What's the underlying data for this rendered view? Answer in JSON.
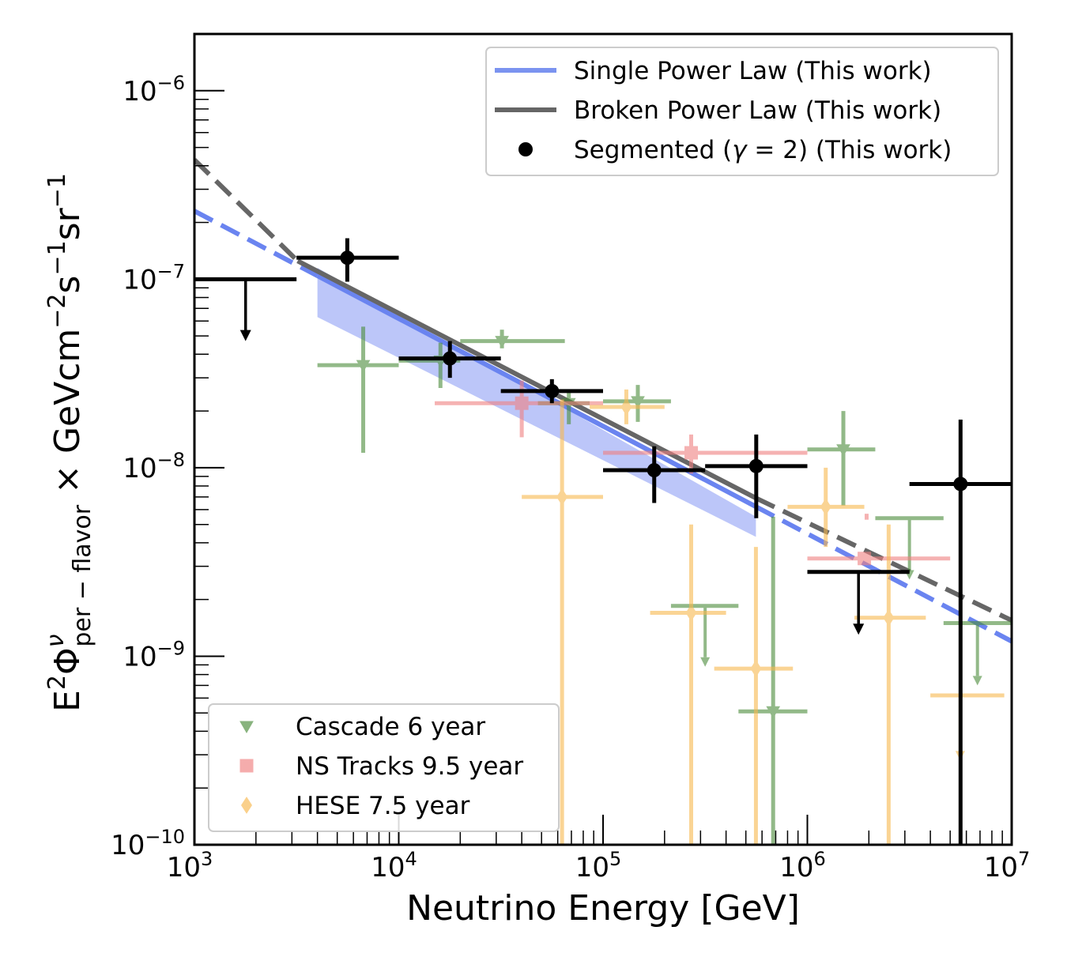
{
  "chart_data": {
    "type": "scatter",
    "title": "",
    "xlabel": "Neutrino Energy [GeV]",
    "ylabel": {
      "base": "E",
      "pow": "2",
      "phi": "Φ",
      "nu": "ν",
      "sub": "per − flavor",
      "units": "× GeVcm",
      "u1": "−2",
      "s": "s",
      "u2": "−1",
      "sr": "sr",
      "u3": "−1"
    },
    "x_scale": "log",
    "y_scale": "log",
    "xlim": [
      1000,
      10000000
    ],
    "ylim": [
      1e-10,
      2e-06
    ],
    "x_ticks": [
      {
        "value": 1000,
        "base": "10",
        "exp": "3"
      },
      {
        "value": 10000,
        "base": "10",
        "exp": "4"
      },
      {
        "value": 100000,
        "base": "10",
        "exp": "5"
      },
      {
        "value": 1000000,
        "base": "10",
        "exp": "6"
      },
      {
        "value": 10000000,
        "base": "10",
        "exp": "7"
      }
    ],
    "y_ticks": [
      {
        "value": 1e-10,
        "base": "10",
        "exp": "−10"
      },
      {
        "value": 1e-09,
        "base": "10",
        "exp": "−9"
      },
      {
        "value": 1e-08,
        "base": "10",
        "exp": "−8"
      },
      {
        "value": 1e-07,
        "base": "10",
        "exp": "−7"
      },
      {
        "value": 1e-06,
        "base": "10",
        "exp": "−6"
      }
    ],
    "legend_top": {
      "placement": "top-right",
      "entries": [
        {
          "label": "Single Power Law (This work)",
          "kind": "line",
          "color": "#7b93f0"
        },
        {
          "label": "Broken Power Law (This work)",
          "kind": "line",
          "color": "#666666"
        },
        {
          "label_prefix": "Segmented (",
          "label_gamma": "γ",
          "label_eq": " = 2) (This work)",
          "kind": "dot",
          "color": "#000000"
        }
      ]
    },
    "legend_bottom": {
      "placement": "bottom-left",
      "entries": [
        {
          "label": "Cascade 6 year",
          "kind": "triangle",
          "color": "#4a8c3a"
        },
        {
          "label": "NS Tracks 9.5 year",
          "kind": "square",
          "color": "#f08080"
        },
        {
          "label": "HESE 7.5 year",
          "kind": "diamond",
          "color": "#f8b84e"
        }
      ]
    },
    "series": [
      {
        "name": "Single Power Law (This work)",
        "kind": "model",
        "color": "#6a84f0",
        "band_color": "#b0bcf8",
        "solid_range": [
          4000,
          560000
        ],
        "line": {
          "x": [
            1000,
            10000000
          ],
          "y": [
            2.3e-07,
            1.2e-09
          ]
        },
        "band": {
          "x": [
            4000,
            560000
          ],
          "lower": [
            6.3e-08,
            4.3e-09
          ],
          "upper": [
            1.15e-07,
            5.5e-09
          ]
        }
      },
      {
        "name": "Broken Power Law (This work)",
        "kind": "model",
        "color": "#666666",
        "solid_range": [
          3200,
          560000
        ],
        "line": {
          "x": [
            1000,
            3200,
            560000,
            10000000
          ],
          "y": [
            4.3e-07,
            1.25e-07,
            6.9e-09,
            1.55e-09
          ]
        }
      },
      {
        "name": "Segmented (γ=2) (This work)",
        "kind": "segmented",
        "color": "#000000",
        "points": [
          {
            "x": 5600,
            "y": 1.3e-07,
            "xlo": 3160,
            "xhi": 10000,
            "ylo": 9.7e-08,
            "yhi": 1.65e-07
          },
          {
            "x": 17800,
            "y": 3.8e-08,
            "xlo": 10000,
            "xhi": 31600,
            "ylo": 3e-08,
            "yhi": 4.7e-08
          },
          {
            "x": 56200,
            "y": 2.55e-08,
            "xlo": 31600,
            "xhi": 100000,
            "ylo": 2.2e-08,
            "yhi": 2.95e-08
          },
          {
            "x": 178000,
            "y": 9.7e-09,
            "xlo": 100000,
            "xhi": 316000,
            "ylo": 6.5e-09,
            "yhi": 1.3e-08
          },
          {
            "x": 562000,
            "y": 1.02e-08,
            "xlo": 316000,
            "xhi": 1000000,
            "ylo": 5.4e-09,
            "yhi": 1.5e-08
          },
          {
            "x": 5620000,
            "y": 8.2e-09,
            "xlo": 3160000,
            "xhi": 10000000,
            "ylo": 1e-10,
            "yhi": 1.8e-08
          }
        ],
        "upper_limits": [
          {
            "x": 1780,
            "y": 1e-07,
            "xlo": 1000,
            "xhi": 3160,
            "arrow_to": 4.7e-08
          },
          {
            "x": 1780000,
            "y": 2.8e-09,
            "xlo": 1000000,
            "xhi": 3160000,
            "arrow_to": 1.3e-09
          }
        ]
      },
      {
        "name": "Cascade 6 year",
        "kind": "reference",
        "color": "#4a8c3a",
        "marker": "triangle",
        "points": [
          {
            "x": 6700,
            "y": 3.5e-08,
            "xlo": 4000,
            "xhi": 10000,
            "ylo": 1.2e-08,
            "yhi": 5.6e-08
          },
          {
            "x": 16000,
            "y": 3.7e-08,
            "xlo": 10000,
            "xhi": 20000,
            "ylo": 2.65e-08,
            "yhi": 4.6e-08
          },
          {
            "x": 32000,
            "y": 4.7e-08,
            "xlo": 20000,
            "xhi": 65000,
            "ylo": 4.3e-08,
            "yhi": 5.4e-08
          },
          {
            "x": 68000,
            "y": 2.2e-08,
            "xlo": 48000,
            "xhi": 86000,
            "ylo": 1.7e-08,
            "yhi": 2.6e-08
          },
          {
            "x": 148000,
            "y": 2.25e-08,
            "xlo": 100000,
            "xhi": 215000,
            "ylo": 1.75e-08,
            "yhi": 2.75e-08
          },
          {
            "x": 680000,
            "y": 5.1e-10,
            "xlo": 460000,
            "xhi": 1000000,
            "ylo": 1e-10,
            "yhi": 5.5e-09
          },
          {
            "x": 1500000,
            "y": 1.25e-08,
            "xlo": 1000000,
            "xhi": 2150000,
            "ylo": 6.3e-09,
            "yhi": 2e-08
          }
        ],
        "upper_limits": [
          {
            "x": 316000,
            "y": 1.85e-09,
            "xlo": 215000,
            "xhi": 460000,
            "arrow_to": 8.8e-10
          },
          {
            "x": 3160000,
            "y": 5.4e-09,
            "xlo": 2150000,
            "xhi": 4640000,
            "arrow_to": 2.55e-09
          },
          {
            "x": 6800000,
            "y": 1.5e-09,
            "xlo": 4640000,
            "xhi": 10000000,
            "arrow_to": 7e-10
          }
        ]
      },
      {
        "name": "NS Tracks 9.5 year",
        "kind": "reference",
        "color": "#f08080",
        "marker": "square",
        "points": [
          {
            "x": 40000,
            "y": 2.2e-08,
            "xlo": 15000,
            "xhi": 100000,
            "ylo": 1.45e-08,
            "yhi": 2.9e-08
          },
          {
            "x": 270000,
            "y": 1.2e-08,
            "xlo": 100000,
            "xhi": 1000000,
            "ylo": 9.3e-09,
            "yhi": 1.5e-08
          },
          {
            "x": 1900000,
            "y": 3.3e-09,
            "xlo": 1000000,
            "xhi": 5000000,
            "ylo": 3.1e-09,
            "yhi": 3.5e-09
          }
        ],
        "fragments": [
          {
            "x": 1950000,
            "ylo": 5.3e-09,
            "yhi": 5.7e-09
          }
        ]
      },
      {
        "name": "HESE 7.5 year",
        "kind": "reference",
        "color": "#f8b84e",
        "marker": "diamond",
        "points": [
          {
            "x": 63000,
            "y": 7e-09,
            "xlo": 40000,
            "xhi": 100000,
            "ylo": 1e-10,
            "yhi": 2.3e-08
          },
          {
            "x": 130000,
            "y": 2.1e-08,
            "xlo": 86000,
            "xhi": 200000,
            "ylo": 1.7e-08,
            "yhi": 2.6e-08
          },
          {
            "x": 270000,
            "y": 1.7e-09,
            "xlo": 170000,
            "xhi": 400000,
            "ylo": 1e-10,
            "yhi": 5e-09
          },
          {
            "x": 560000,
            "y": 8.6e-10,
            "xlo": 350000,
            "xhi": 850000,
            "ylo": 1e-10,
            "yhi": 3.8e-09
          },
          {
            "x": 1230000,
            "y": 6.2e-09,
            "xlo": 800000,
            "xhi": 1900000,
            "ylo": 3.8e-09,
            "yhi": 1e-08
          },
          {
            "x": 2500000,
            "y": 1.6e-09,
            "xlo": 1700000,
            "xhi": 3800000,
            "ylo": 1e-10,
            "yhi": 5e-09
          }
        ],
        "upper_limits": [
          {
            "x": 6200000,
            "y": 6.2e-10,
            "xlo": 4000000,
            "xhi": 9200000,
            "arrow_to": 2.8e-10,
            "arrow_x": 5600000
          }
        ]
      }
    ]
  }
}
